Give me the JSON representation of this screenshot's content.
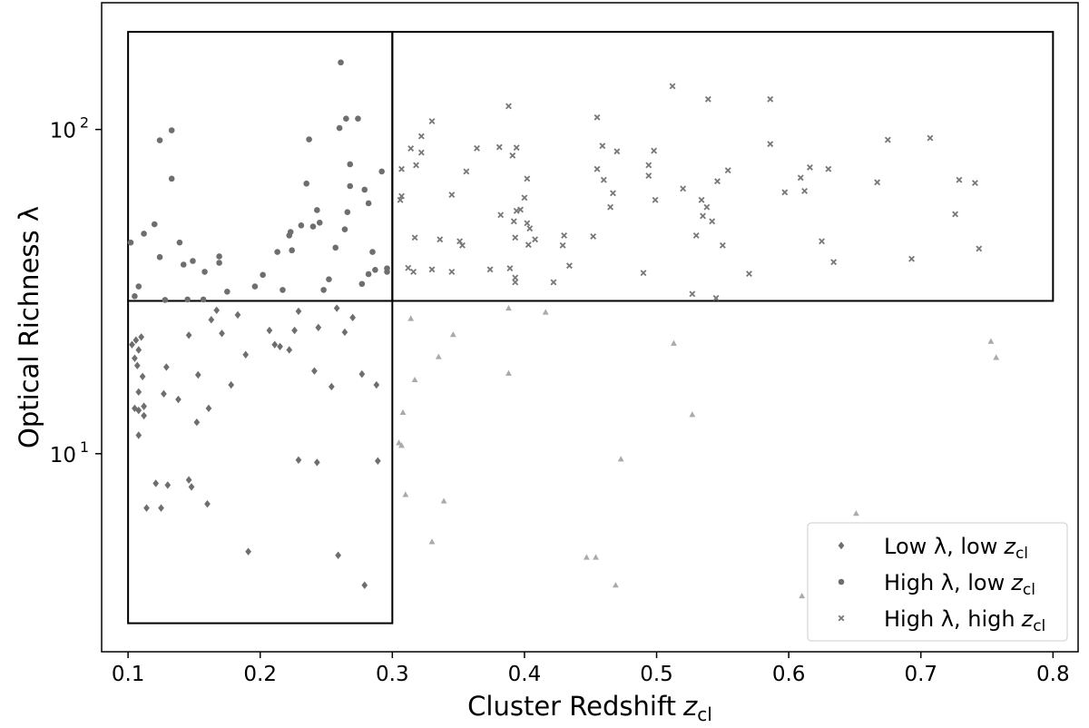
{
  "chart_data": {
    "type": "scatter",
    "xlabel": {
      "text": "Cluster Redshift",
      "var": "z",
      "sub": "cl"
    },
    "ylabel": "Optical Richness λ",
    "xlim": [
      0.08,
      0.819
    ],
    "ylim": [
      2.45,
      246
    ],
    "log_y": true,
    "xticks": [
      0.1,
      0.2,
      0.3,
      0.4,
      0.5,
      0.6,
      0.7,
      0.8
    ],
    "yticks": [
      {
        "value": 10,
        "label": "10",
        "exponent": "1"
      },
      {
        "value": 100,
        "label": "10",
        "exponent": "2"
      }
    ],
    "legend": "lower right",
    "regions": [
      {
        "x": [
          0.1,
          0.3
        ],
        "y": [
          3,
          29.6
        ]
      },
      {
        "x": [
          0.1,
          0.3
        ],
        "y": [
          29.6,
          200
        ]
      },
      {
        "x": [
          0.3,
          0.8
        ],
        "y": [
          29.6,
          200
        ]
      }
    ],
    "series": [
      {
        "name": "Low λ, low",
        "name_var": "z",
        "name_sub": "cl",
        "marker": "diamond",
        "color": "#6e6e6e",
        "x": [
          0.103,
          0.105,
          0.107,
          0.106,
          0.11,
          0.108,
          0.111,
          0.108,
          0.112,
          0.105,
          0.108,
          0.112,
          0.108,
          0.114,
          0.121,
          0.125,
          0.13,
          0.127,
          0.129,
          0.138,
          0.146,
          0.146,
          0.148,
          0.152,
          0.153,
          0.16,
          0.161,
          0.163,
          0.167,
          0.171,
          0.178,
          0.183,
          0.189,
          0.191,
          0.207,
          0.211,
          0.215,
          0.222,
          0.226,
          0.229,
          0.229,
          0.241,
          0.243,
          0.244,
          0.254,
          0.259,
          0.258,
          0.264,
          0.27,
          0.277,
          0.279,
          0.288,
          0.289
        ],
        "y": [
          21.7,
          19.7,
          18.7,
          22.4,
          22.9,
          20.9,
          17.3,
          15.5,
          14.0,
          13.8,
          13.6,
          13.1,
          11.4,
          6.8,
          8.1,
          6.8,
          8.0,
          15.3,
          18.5,
          14.7,
          23.2,
          8.3,
          7.9,
          12.5,
          17.5,
          7.0,
          13.8,
          25.9,
          27.7,
          23.5,
          16.3,
          26.8,
          20.2,
          4.99,
          24.0,
          21.7,
          21.4,
          20.9,
          24.0,
          27.5,
          9.56,
          18.0,
          9.4,
          24.5,
          16.1,
          4.86,
          28.1,
          23.7,
          26.3,
          17.6,
          3.93,
          16.3,
          9.5
        ]
      },
      {
        "name": "High λ, low",
        "name_var": "z",
        "name_sub": "cl",
        "marker": "circle",
        "color": "#6e6e6e",
        "x": [
          0.102,
          0.105,
          0.108,
          0.112,
          0.12,
          0.124,
          0.124,
          0.128,
          0.133,
          0.133,
          0.139,
          0.142,
          0.145,
          0.149,
          0.158,
          0.157,
          0.169,
          0.169,
          0.175,
          0.196,
          0.202,
          0.213,
          0.217,
          0.222,
          0.223,
          0.224,
          0.231,
          0.235,
          0.237,
          0.24,
          0.243,
          0.245,
          0.248,
          0.252,
          0.257,
          0.261,
          0.26,
          0.265,
          0.264,
          0.266,
          0.268,
          0.268,
          0.274,
          0.277,
          0.279,
          0.282,
          0.282,
          0.285,
          0.287,
          0.292,
          0.296,
          0.296
        ],
        "y": [
          44.8,
          30.6,
          32.8,
          47.7,
          51.0,
          92.6,
          40.4,
          29.8,
          99.4,
          70.5,
          44.8,
          38.3,
          29.9,
          39.3,
          36.4,
          29.9,
          40.6,
          38.8,
          31.6,
          32.8,
          35.6,
          41.9,
          32.0,
          47.1,
          48.3,
          42.4,
          50.6,
          68.1,
          93.2,
          50.2,
          56.4,
          51.6,
          32.0,
          34.5,
          43.2,
          161,
          101,
          108,
          49.2,
          55.6,
          66.9,
          78.1,
          108,
          33.4,
          65.2,
          59.2,
          35.8,
          41.9,
          36.9,
          74.2,
          36.4,
          37.3
        ]
      },
      {
        "name": "High λ, high",
        "name_var": "z",
        "name_sub": "cl",
        "marker": "x",
        "color": "#777777",
        "x": [
          0.306,
          0.307,
          0.307,
          0.312,
          0.314,
          0.316,
          0.317,
          0.318,
          0.322,
          0.322,
          0.33,
          0.33,
          0.336,
          0.345,
          0.345,
          0.351,
          0.353,
          0.356,
          0.364,
          0.374,
          0.381,
          0.382,
          0.389,
          0.388,
          0.391,
          0.392,
          0.393,
          0.393,
          0.393,
          0.394,
          0.394,
          0.397,
          0.4,
          0.402,
          0.402,
          0.403,
          0.404,
          0.408,
          0.422,
          0.429,
          0.43,
          0.434,
          0.452,
          0.455,
          0.455,
          0.459,
          0.46,
          0.465,
          0.467,
          0.47,
          0.49,
          0.494,
          0.494,
          0.498,
          0.499,
          0.512,
          0.52,
          0.527,
          0.53,
          0.534,
          0.535,
          0.538,
          0.539,
          0.542,
          0.545,
          0.546,
          0.55,
          0.554,
          0.57,
          0.586,
          0.586,
          0.597,
          0.609,
          0.612,
          0.616,
          0.625,
          0.63,
          0.634,
          0.667,
          0.675,
          0.693,
          0.707,
          0.726,
          0.729,
          0.741,
          0.744
        ],
        "y": [
          60.6,
          62.3,
          75.5,
          37.4,
          87.4,
          36.4,
          46.4,
          77.6,
          84.9,
          95.3,
          37.0,
          106,
          45.8,
          62.9,
          36.4,
          45.2,
          43.9,
          74.2,
          87.5,
          37.0,
          88.2,
          54.5,
          37.3,
          118,
          83.1,
          52.1,
          46.4,
          33.8,
          34.9,
          56.1,
          87.9,
          56.6,
          61.6,
          51.4,
          70.5,
          44.1,
          49.5,
          45.8,
          33.8,
          43.9,
          47.1,
          38.0,
          46.8,
          109,
          75.5,
          89.0,
          69.9,
          57.6,
          63.6,
          85.6,
          36.1,
          77.6,
          72.0,
          86.0,
          60.6,
          136,
          65.7,
          31.1,
          47.1,
          60.6,
          54.1,
          57.6,
          124,
          52.1,
          30.2,
          69.2,
          43.9,
          74.8,
          35.9,
          124,
          90.2,
          64.0,
          71.0,
          64.6,
          76.4,
          45.2,
          75.5,
          39.0,
          68.7,
          92.9,
          39.9,
          94.1,
          54.8,
          69.9,
          68.4,
          42.9
        ]
      },
      {
        "marker": "triangle",
        "color": "#aaaaaa",
        "x": [
          0.314,
          0.317,
          0.308,
          0.305,
          0.307,
          0.31,
          0.33,
          0.335,
          0.339,
          0.346,
          0.388,
          0.388,
          0.416,
          0.447,
          0.454,
          0.469,
          0.473,
          0.513,
          0.527,
          0.61,
          0.651,
          0.753,
          0.757
        ],
        "y": [
          26.1,
          16.9,
          13.4,
          10.8,
          10.6,
          7.48,
          5.35,
          19.9,
          7.14,
          23.3,
          28.1,
          17.7,
          27.3,
          4.79,
          4.79,
          3.93,
          9.62,
          21.9,
          13.2,
          3.64,
          6.54,
          22.2,
          19.8
        ]
      }
    ]
  }
}
